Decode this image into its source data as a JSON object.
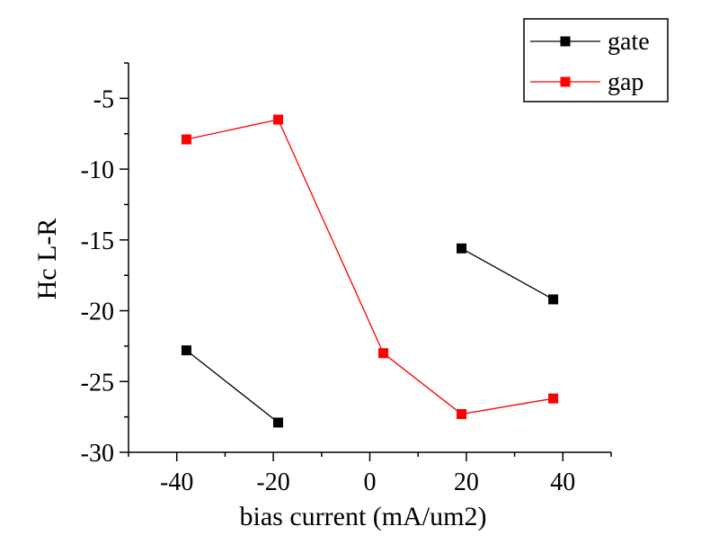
{
  "chart_data": {
    "type": "line",
    "xlabel": "bias current (mA/um2)",
    "ylabel": "Hc L-R",
    "xlim": [
      -50,
      50
    ],
    "ylim": [
      -30,
      -2.5
    ],
    "x_ticks": [
      -40,
      -20,
      0,
      20,
      40
    ],
    "x_tick_labels": [
      "-40",
      "-20",
      "0",
      "20",
      "40"
    ],
    "y_ticks": [
      -5,
      -10,
      -15,
      -20,
      -25,
      -30
    ],
    "y_tick_labels": [
      "-5",
      "-10",
      "-15",
      "-20",
      "-25",
      "-30"
    ],
    "legend_position": "top-right",
    "grid": false,
    "series": [
      {
        "name": "gate",
        "color": "#000000",
        "marker": "square",
        "segments": [
          [
            [
              -38,
              -22.8
            ],
            [
              -19,
              -27.9
            ]
          ],
          [
            [
              19,
              -15.6
            ],
            [
              38,
              -19.2
            ]
          ]
        ]
      },
      {
        "name": "gap",
        "color": "#ff0000",
        "marker": "square",
        "segments": [
          [
            [
              -38,
              -7.9
            ],
            [
              -19,
              -6.5
            ],
            [
              2.8,
              -23.0
            ],
            [
              19,
              -27.3
            ],
            [
              38,
              -26.2
            ]
          ]
        ]
      }
    ]
  }
}
